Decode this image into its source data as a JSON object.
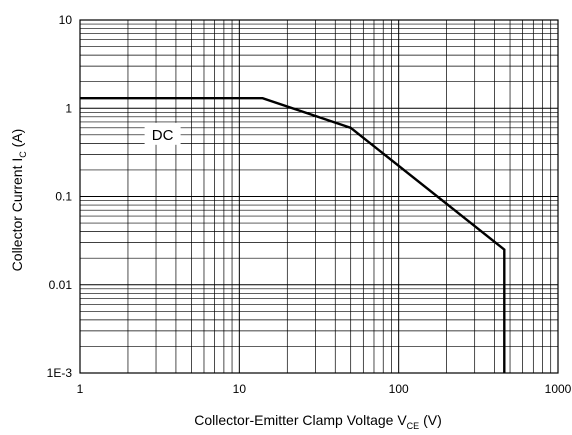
{
  "chart_data": {
    "type": "line",
    "xscale": "log",
    "yscale": "log",
    "xlim": [
      1,
      1000
    ],
    "ylim": [
      0.001,
      10
    ],
    "grid": true,
    "legend": "none",
    "x_ticks": [
      {
        "value": 1,
        "label": "1"
      },
      {
        "value": 10,
        "label": "10"
      },
      {
        "value": 100,
        "label": "100"
      },
      {
        "value": 1000,
        "label": "1000"
      }
    ],
    "y_ticks": [
      {
        "value": 10,
        "label": "10"
      },
      {
        "value": 1,
        "label": "1"
      },
      {
        "value": 0.1,
        "label": "0.1"
      },
      {
        "value": 0.01,
        "label": "0.01"
      },
      {
        "value": 0.001,
        "label": "1E-3"
      }
    ],
    "xlabel": {
      "main": "Collector-Emitter Clamp Voltage V",
      "sub": "CE",
      "unit": " (V)"
    },
    "ylabel": {
      "main": "Collector Current I",
      "sub": "C",
      "unit": " (A)"
    },
    "series": [
      {
        "x": [
          1,
          14,
          50,
          460,
          460
        ],
        "y": [
          1.3,
          1.3,
          0.6,
          0.025,
          0.001
        ]
      }
    ],
    "annotations": [
      {
        "text": "DC",
        "x": 3.3,
        "y": 0.5
      }
    ],
    "colors": {
      "line": "#000000",
      "grid": "#000000",
      "label_box": "#ffffff"
    }
  }
}
